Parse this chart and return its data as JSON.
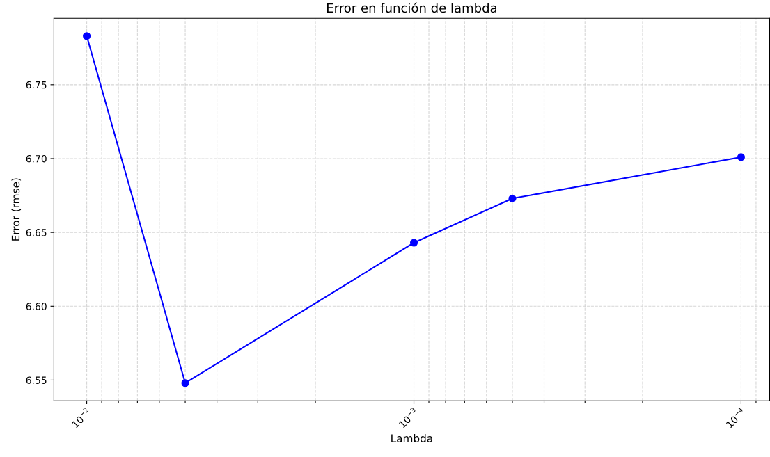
{
  "chart_data": {
    "type": "line",
    "title": "Error en función de lambda",
    "xlabel": "Lambda",
    "ylabel": "Error (rmse)",
    "x": [
      0.01,
      0.005,
      0.001,
      0.0005,
      0.0001
    ],
    "series": [
      {
        "color": "#0000ff",
        "values": [
          6.783,
          6.548,
          6.643,
          6.673,
          6.701
        ]
      }
    ],
    "log": "x",
    "xlim": [
      0.0126,
      8.18e-05
    ],
    "ylim": [
      6.536,
      6.795
    ],
    "xticks": [
      {
        "value": 0.01,
        "label": "10$^{−2}$"
      },
      {
        "value": 0.001,
        "label": "10$^{−3}$"
      },
      {
        "value": 0.0001,
        "label": "10$^{−4}$"
      },
      {
        "value": 0.009,
        "label": null
      },
      {
        "value": 0.008,
        "label": null
      },
      {
        "value": 0.007,
        "label": null
      },
      {
        "value": 0.006,
        "label": null
      },
      {
        "value": 0.005,
        "label": null
      },
      {
        "value": 0.004,
        "label": null
      },
      {
        "value": 0.003,
        "label": null
      },
      {
        "value": 0.002,
        "label": null
      },
      {
        "value": 0.0009,
        "label": null
      },
      {
        "value": 0.0008,
        "label": null
      },
      {
        "value": 0.0007,
        "label": null
      },
      {
        "value": 0.0006,
        "label": null
      },
      {
        "value": 0.0005,
        "label": null
      },
      {
        "value": 0.0004,
        "label": null
      },
      {
        "value": 0.0003,
        "label": null
      },
      {
        "value": 0.0002,
        "label": null
      },
      {
        "value": 9e-05,
        "label": null
      }
    ],
    "yticks": [
      6.55,
      {
        "value": 6.6,
        "label": "6.60"
      },
      6.65,
      {
        "value": 6.7,
        "label": "6.70"
      },
      6.75
    ],
    "grid": true,
    "marker": "circle",
    "line_style": "solid"
  }
}
